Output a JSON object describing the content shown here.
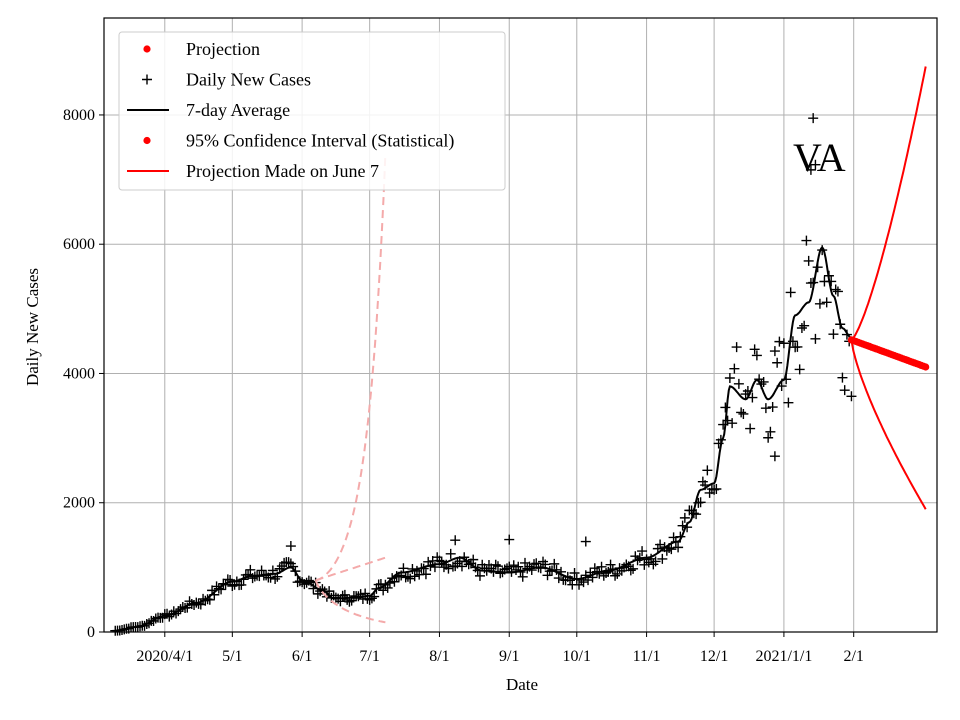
{
  "chart_data": {
    "type": "line",
    "title": "",
    "annotation": "VA",
    "xlabel": "Date",
    "ylabel": "Daily New Cases",
    "xlim": [
      "2020-03-05",
      "2021-03-10"
    ],
    "ylim": [
      0,
      9500
    ],
    "x_ticks": [
      {
        "date": "2020-04-01",
        "label": "2020/4/1"
      },
      {
        "date": "2020-05-01",
        "label": "5/1"
      },
      {
        "date": "2020-06-01",
        "label": "6/1"
      },
      {
        "date": "2020-07-01",
        "label": "7/1"
      },
      {
        "date": "2020-08-01",
        "label": "8/1"
      },
      {
        "date": "2020-09-01",
        "label": "9/1"
      },
      {
        "date": "2020-10-01",
        "label": "10/1"
      },
      {
        "date": "2020-11-01",
        "label": "11/1"
      },
      {
        "date": "2020-12-01",
        "label": "12/1"
      },
      {
        "date": "2021-01-01",
        "label": "2021/1/1"
      },
      {
        "date": "2021-02-01",
        "label": "2/1"
      }
    ],
    "y_ticks": [
      {
        "value": 0,
        "label": "0"
      },
      {
        "value": 2000,
        "label": "2000"
      },
      {
        "value": 4000,
        "label": "4000"
      },
      {
        "value": 6000,
        "label": "6000"
      },
      {
        "value": 8000,
        "label": "8000"
      }
    ],
    "grid": true,
    "legend": {
      "position": "top-left",
      "entries": [
        {
          "label": "Projection",
          "marker": "dot",
          "color": "#ff0000"
        },
        {
          "label": "Daily New Cases",
          "marker": "plus",
          "color": "#000000"
        },
        {
          "label": "7-day Average",
          "marker": "line",
          "color": "#000000"
        },
        {
          "label": "95% Confidence Interval (Statistical)",
          "marker": "dot",
          "color": "#ff0000"
        },
        {
          "label": "Projection Made on June 7",
          "marker": "line",
          "color": "#ff0000"
        }
      ]
    },
    "series": [
      {
        "name": "7-day Average",
        "kind": "line",
        "color": "#000000",
        "anchors": [
          [
            "2020-03-10",
            20
          ],
          [
            "2020-03-20",
            80
          ],
          [
            "2020-04-01",
            250
          ],
          [
            "2020-04-15",
            450
          ],
          [
            "2020-05-01",
            780
          ],
          [
            "2020-05-10",
            870
          ],
          [
            "2020-05-20",
            900
          ],
          [
            "2020-05-27",
            1000
          ],
          [
            "2020-06-01",
            800
          ],
          [
            "2020-06-10",
            650
          ],
          [
            "2020-06-15",
            520
          ],
          [
            "2020-06-25",
            530
          ],
          [
            "2020-07-01",
            560
          ],
          [
            "2020-07-05",
            680
          ],
          [
            "2020-07-15",
            920
          ],
          [
            "2020-08-01",
            1050
          ],
          [
            "2020-08-10",
            1150
          ],
          [
            "2020-08-20",
            950
          ],
          [
            "2020-09-01",
            920
          ],
          [
            "2020-09-15",
            1000
          ],
          [
            "2020-10-01",
            820
          ],
          [
            "2020-10-15",
            950
          ],
          [
            "2020-11-01",
            1150
          ],
          [
            "2020-11-15",
            1400
          ],
          [
            "2020-11-20",
            1700
          ],
          [
            "2020-11-25",
            2200
          ],
          [
            "2020-12-01",
            2300
          ],
          [
            "2020-12-05",
            3000
          ],
          [
            "2020-12-08",
            3800
          ],
          [
            "2020-12-15",
            3600
          ],
          [
            "2020-12-20",
            3900
          ],
          [
            "2020-12-25",
            3600
          ],
          [
            "2021-01-01",
            3900
          ],
          [
            "2021-01-06",
            4900
          ],
          [
            "2021-01-12",
            5100
          ],
          [
            "2021-01-18",
            5950
          ],
          [
            "2021-01-23",
            5200
          ],
          [
            "2021-01-27",
            4700
          ],
          [
            "2021-01-31",
            4550
          ]
        ]
      },
      {
        "name": "Projection",
        "kind": "dots",
        "color": "#ff0000",
        "start": [
          "2021-01-31",
          4520
        ],
        "end": [
          "2021-03-05",
          4100
        ]
      },
      {
        "name": "95% Confidence Interval (Statistical)",
        "kind": "band",
        "color": "#ff0000",
        "upper_end": [
          "2021-03-05",
          8750
        ],
        "lower_end": [
          "2021-03-05",
          1900
        ]
      },
      {
        "name": "Projection Made on June 7",
        "kind": "dashed-band",
        "color": "#f4aaaa",
        "start": [
          "2020-06-07",
          800
        ],
        "upper_end": [
          "2020-07-08",
          7400
        ],
        "mid_end": [
          "2020-07-08",
          1150
        ],
        "lower_end": [
          "2020-07-08",
          150
        ]
      }
    ],
    "daily_cases_notable_points": [
      [
        "2021-01-14",
        7950
      ],
      [
        "2021-01-13",
        7150
      ],
      [
        "2021-01-15",
        7230
      ],
      [
        "2020-05-27",
        1330
      ],
      [
        "2020-08-08",
        1420
      ],
      [
        "2020-09-01",
        1430
      ],
      [
        "2020-12-28",
        2720
      ],
      [
        "2020-10-05",
        1400
      ]
    ]
  }
}
